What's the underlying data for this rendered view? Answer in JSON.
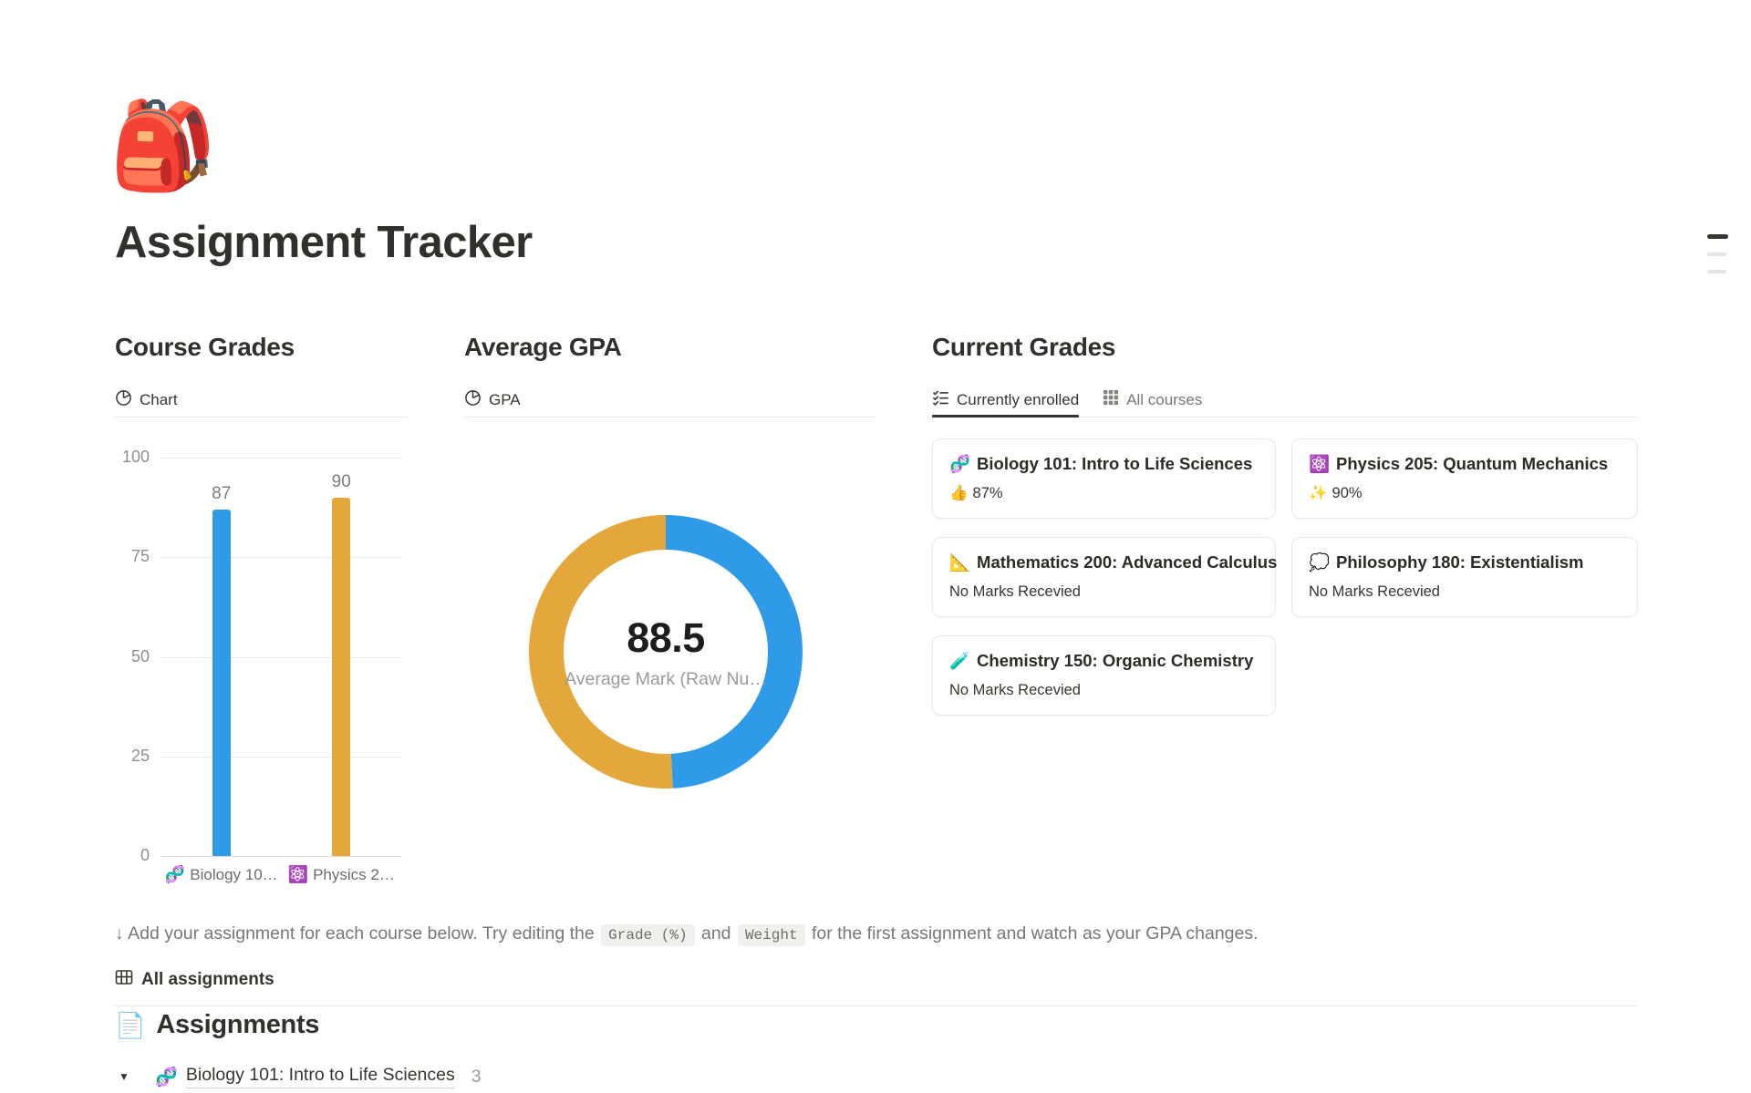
{
  "page": {
    "icon": "🎒",
    "title": "Assignment Tracker"
  },
  "course_grades": {
    "heading": "Course Grades",
    "tab": {
      "icon": "pie-chart-icon",
      "label": "Chart"
    }
  },
  "average_gpa": {
    "heading": "Average GPA",
    "tab": {
      "icon": "pie-chart-icon",
      "label": "GPA"
    }
  },
  "current_grades": {
    "heading": "Current Grades",
    "tabs": [
      {
        "icon": "checklist-icon",
        "label": "Currently enrolled",
        "active": true
      },
      {
        "icon": "grid-icon",
        "label": "All courses",
        "active": false
      }
    ],
    "cards": [
      {
        "emoji": "🧬",
        "title": "Biology 101: Intro to Life Sciences",
        "value_emoji": "👍",
        "value": "87%"
      },
      {
        "emoji": "⚛️",
        "title": "Physics 205: Quantum Mechanics",
        "value_emoji": "✨",
        "value": "90%"
      },
      {
        "emoji": "📐",
        "title": "Mathematics 200: Advanced Calculus",
        "value_emoji": "",
        "value": "No Marks Recevied"
      },
      {
        "emoji": "💭",
        "title": "Philosophy 180: Existentialism",
        "value_emoji": "",
        "value": "No Marks Recevied"
      },
      {
        "emoji": "🧪",
        "title": "Chemistry 150: Organic Chemistry",
        "value_emoji": "",
        "value": "No Marks Recevied"
      }
    ]
  },
  "note": {
    "part1": "↓ Add your assignment for each course below. Try editing the ",
    "code1": "Grade (%)",
    "part2": " and ",
    "code2": "Weight",
    "part3": " for the first assignment and watch as your GPA changes."
  },
  "all_assignments": {
    "icon": "table-icon",
    "label": "All assignments"
  },
  "assignments": {
    "icon": "📄",
    "heading": "Assignments",
    "toggle": {
      "triangle": "▼",
      "emoji": "🧬",
      "label": "Biology 101: Intro to Life Sciences",
      "count": "3"
    }
  },
  "colors": {
    "bar_blue": "#2F9BE8",
    "bar_yellow": "#E3A73C",
    "text_dark": "#37352F",
    "text_gray": "#787774"
  },
  "chart_data": [
    {
      "id": "course-grades-bar",
      "type": "bar",
      "title": "Course Grades",
      "categories": [
        "🧬 Biology 10…",
        "⚛️ Physics 2…"
      ],
      "values": [
        87,
        90
      ],
      "value_labels": [
        "87",
        "90"
      ],
      "colors": [
        "#2F9BE8",
        "#E3A73C"
      ],
      "ylim": [
        0,
        100
      ],
      "yticks": [
        0,
        25,
        50,
        75,
        100
      ],
      "grid": "horizontal-dotted",
      "legend": "none"
    },
    {
      "id": "average-gpa-donut",
      "type": "pie",
      "title": "Average GPA",
      "center_value": "88.5",
      "center_label": "Average Mark (Raw Nu…",
      "slices": [
        {
          "name": "Biology 101: Intro to Life Sciences",
          "value": 87,
          "color": "#2F9BE8"
        },
        {
          "name": "Physics 205: Quantum Mechanics",
          "value": 90,
          "color": "#E3A73C"
        }
      ],
      "start_angle_deg": 0,
      "direction": "clockwise"
    }
  ]
}
